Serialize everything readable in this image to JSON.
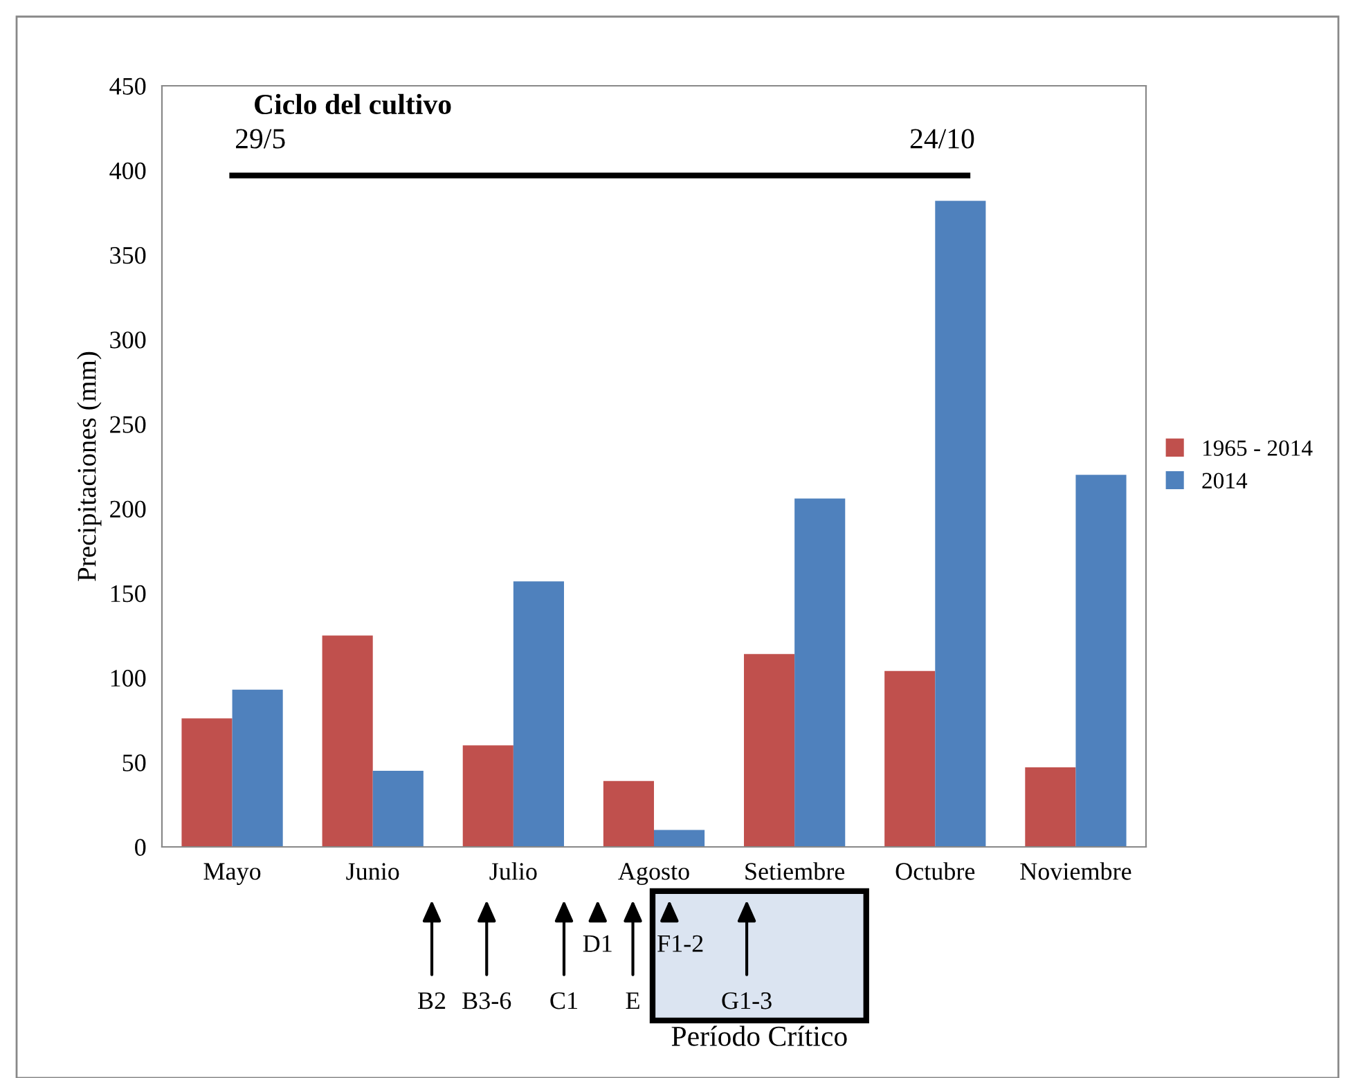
{
  "chart_data": {
    "type": "bar",
    "ylabel": "Precipitaciones (mm)",
    "categories": [
      "Mayo",
      "Junio",
      "Julio",
      "Agosto",
      "Setiembre",
      "Octubre",
      "Noviembre"
    ],
    "series": [
      {
        "name": "1965 - 2014",
        "color": "#c0504d",
        "values": [
          76,
          125,
          60,
          39,
          114,
          104,
          47
        ]
      },
      {
        "name": "2014",
        "color": "#4f81bd",
        "values": [
          93,
          45,
          157,
          10,
          206,
          382,
          220
        ]
      }
    ],
    "ylim": [
      0,
      450
    ],
    "yticks": [
      0,
      50,
      100,
      150,
      200,
      250,
      300,
      350,
      400,
      450
    ],
    "grid": false,
    "legend": "right",
    "annotations": [
      "Ciclo del cultivo",
      "29/5",
      "24/10",
      "B2",
      "B3-6",
      "C1",
      "D1",
      "E",
      "F1-2",
      "G1-3",
      "Período Crítico"
    ]
  }
}
